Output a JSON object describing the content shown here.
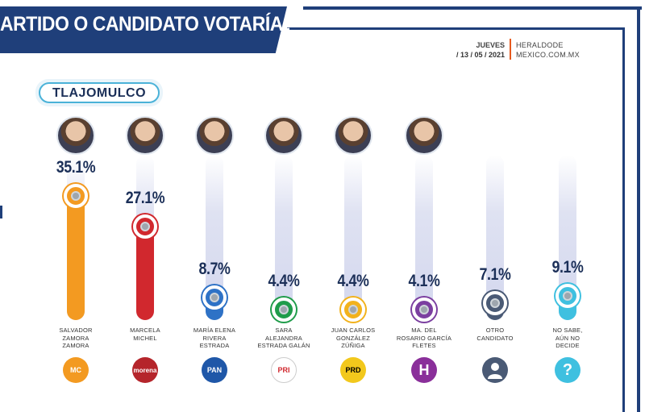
{
  "header": {
    "title": "ARTIDO O CANDIDATO VOTARÍA?",
    "day": "JUEVES",
    "date": "/ 13 / 05 / 2021",
    "source_line1": "HERALDODE",
    "source_line2": "MEXICO.COM.MX"
  },
  "region_label": "TLAJOMULCO",
  "colors": {
    "frame": "#1f3f7a",
    "accent": "#e65a1f",
    "pill_border": "#4ab2d8",
    "text": "#1b2f58"
  },
  "chart_data": {
    "type": "bar",
    "ylim": [
      0,
      40
    ],
    "categories": [
      "SALVADOR ZAMORA ZAMORA",
      "MARCELA MICHEL",
      "MARÍA ELENA RIVERA ESTRADA",
      "SARA ALEJANDRA ESTRADA GALÁN",
      "JUAN CARLOS GONZÁLEZ ZÚÑIGA",
      "MA. DEL ROSARIO GARCÍA FLETES",
      "OTRO CANDIDATO",
      "NO SABE, AÚN NO DECIDE"
    ],
    "values": [
      35.1,
      27.1,
      8.7,
      4.4,
      4.4,
      4.1,
      7.1,
      9.1
    ],
    "value_labels": [
      "35.1%",
      "27.1%",
      "8.7%",
      "4.4%",
      "4.4%",
      "4.1%",
      "7.1%",
      "9.1%"
    ],
    "name_lines": [
      [
        "SALVADOR",
        "ZAMORA",
        "ZAMORA"
      ],
      [
        "MARCELA",
        "MICHEL"
      ],
      [
        "MARÍA ELENA",
        "RIVERA",
        "ESTRADA"
      ],
      [
        "SARA",
        "ALEJANDRA",
        "ESTRADA GALÁN"
      ],
      [
        "JUAN CARLOS",
        "GONZÁLEZ",
        "ZÚÑIGA"
      ],
      [
        "MA. DEL",
        "ROSARIO GARCÍA",
        "FLETES"
      ],
      [
        "OTRO",
        "CANDIDATO"
      ],
      [
        "NO SABE,",
        "AÚN NO",
        "DECIDE"
      ]
    ],
    "colors": [
      "#f39a21",
      "#d1282e",
      "#2e72c6",
      "#1f9c4a",
      "#f2b21c",
      "#7b3fa0",
      "#4a5a75",
      "#3fc0e0"
    ],
    "has_photo": [
      true,
      true,
      true,
      true,
      true,
      true,
      false,
      false
    ],
    "party_logos": [
      {
        "label": "MC",
        "icon": "movimiento-ciudadano-logo",
        "bg": "#f39a21",
        "fg": "#ffffff"
      },
      {
        "label": "morena",
        "icon": "morena-logo",
        "bg": "#b5252b",
        "fg": "#ffffff"
      },
      {
        "label": "PAN",
        "icon": "pan-logo",
        "bg": "#1f57a8",
        "fg": "#ffffff"
      },
      {
        "label": "PRI",
        "icon": "pri-logo",
        "bg": "#ffffff",
        "fg": "#d1282e"
      },
      {
        "label": "PRD",
        "icon": "prd-logo",
        "bg": "#f2c81c",
        "fg": "#000000"
      },
      {
        "label": "H",
        "icon": "hagamos-logo",
        "bg": "#8a2f9a",
        "fg": "#ffffff"
      },
      {
        "label": "",
        "icon": "person-silhouette-icon",
        "bg": "#4a5a75",
        "fg": "#ffffff"
      },
      {
        "label": "?",
        "icon": "question-mark-icon",
        "bg": "#3fc0e0",
        "fg": "#ffffff"
      }
    ]
  }
}
